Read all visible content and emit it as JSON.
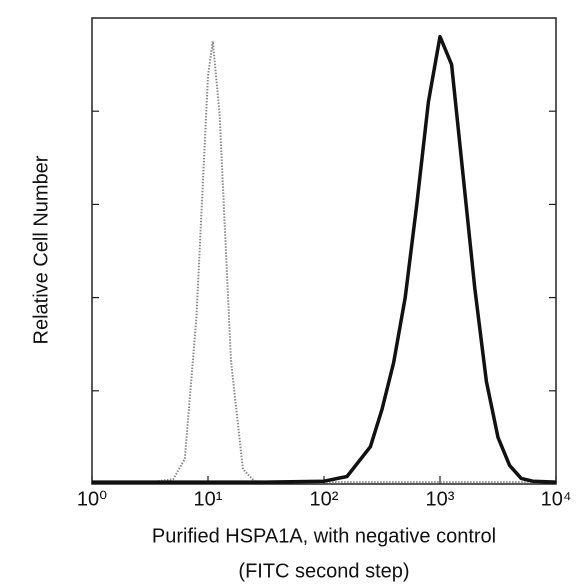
{
  "chart_data": {
    "type": "line",
    "xlabel_lines": [
      "Purified HSPA1A, with negative control",
      "(FITC second step)"
    ],
    "ylabel": "Relative Cell Number",
    "log_x": true,
    "xlim": [
      1,
      10000
    ],
    "xticks": [
      {
        "value": 1,
        "label": "10⁰"
      },
      {
        "value": 10,
        "label": "10¹"
      },
      {
        "value": 100,
        "label": "10²"
      },
      {
        "value": 1000,
        "label": "10³"
      },
      {
        "value": 10000,
        "label": "10⁴"
      }
    ],
    "ylim": [
      0,
      5
    ],
    "yticks": [
      1,
      2,
      3,
      4
    ],
    "series": [
      {
        "color": "#8a8a8a",
        "dotted": true,
        "x": [
          1,
          3.16,
          5.01,
          6.31,
          7.94,
          10,
          11,
          12.6,
          15.8,
          20,
          25.1,
          39.8,
          100,
          1000,
          10000
        ],
        "values": [
          0.02,
          0.02,
          0.05,
          0.27,
          1.78,
          4.38,
          4.75,
          3.97,
          1.32,
          0.16,
          0.03,
          0.02,
          0.02,
          0.02,
          0.02
        ]
      },
      {
        "color": "#111111",
        "dotted": false,
        "x": [
          1,
          31.6,
          100,
          158,
          251,
          316,
          398,
          501,
          631,
          794,
          1000,
          1259,
          1585,
          1995,
          2512,
          3162,
          3981,
          5012,
          6310,
          10000
        ],
        "values": [
          0.02,
          0.02,
          0.03,
          0.08,
          0.4,
          0.8,
          1.3,
          2.0,
          3.0,
          4.1,
          4.8,
          4.5,
          3.3,
          2.1,
          1.1,
          0.5,
          0.2,
          0.06,
          0.03,
          0.02
        ]
      }
    ]
  }
}
